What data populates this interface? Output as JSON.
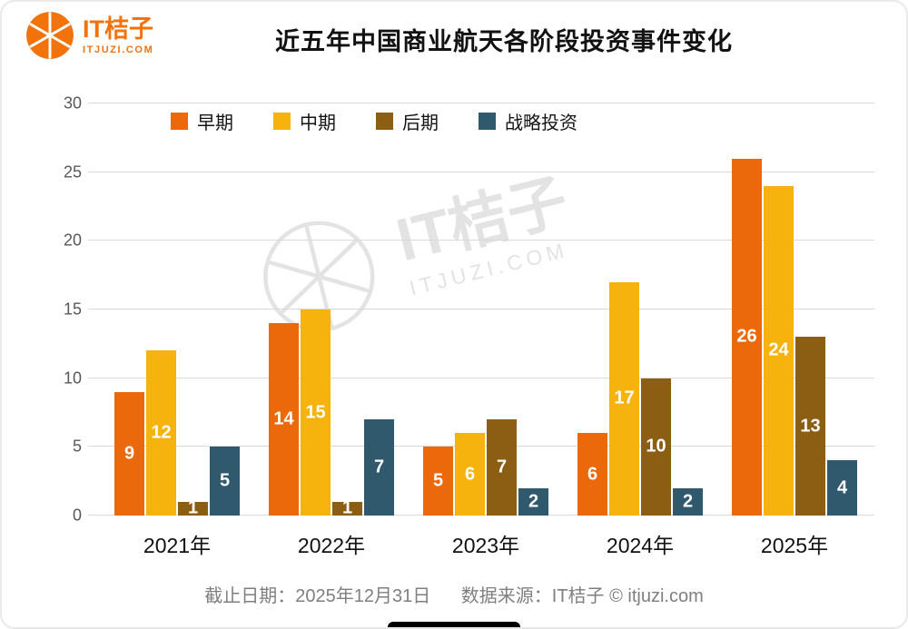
{
  "brand": {
    "name": "IT桔子",
    "domain": "ITJUZI.COM"
  },
  "header": {
    "title": "近五年中国商业航天各阶段投资事件变化"
  },
  "watermark": {
    "name": "IT桔子",
    "domain": "ITJUZI.COM"
  },
  "footer": {
    "deadline": "截止日期：2025年12月31日",
    "source": "数据来源：IT桔子 © itjuzi.com"
  },
  "chart_data": {
    "type": "bar",
    "title": "近五年中国商业航天各阶段投资事件变化",
    "categories": [
      "2021年",
      "2022年",
      "2023年",
      "2024年",
      "2025年"
    ],
    "series": [
      {
        "name": "早期",
        "color": "#EB690B",
        "values": [
          9,
          14,
          5,
          6,
          26
        ]
      },
      {
        "name": "中期",
        "color": "#F7B30D",
        "values": [
          12,
          15,
          6,
          17,
          24
        ]
      },
      {
        "name": "后期",
        "color": "#8B5E13",
        "values": [
          1,
          1,
          7,
          10,
          13
        ]
      },
      {
        "name": "战略投资",
        "color": "#30596E",
        "values": [
          5,
          7,
          2,
          2,
          4
        ]
      }
    ],
    "ylim": [
      0,
      30
    ],
    "yticks": [
      0,
      5,
      10,
      15,
      20,
      25,
      30
    ],
    "grid": true,
    "legend_position": "top-left",
    "bar_value_labels": true
  }
}
